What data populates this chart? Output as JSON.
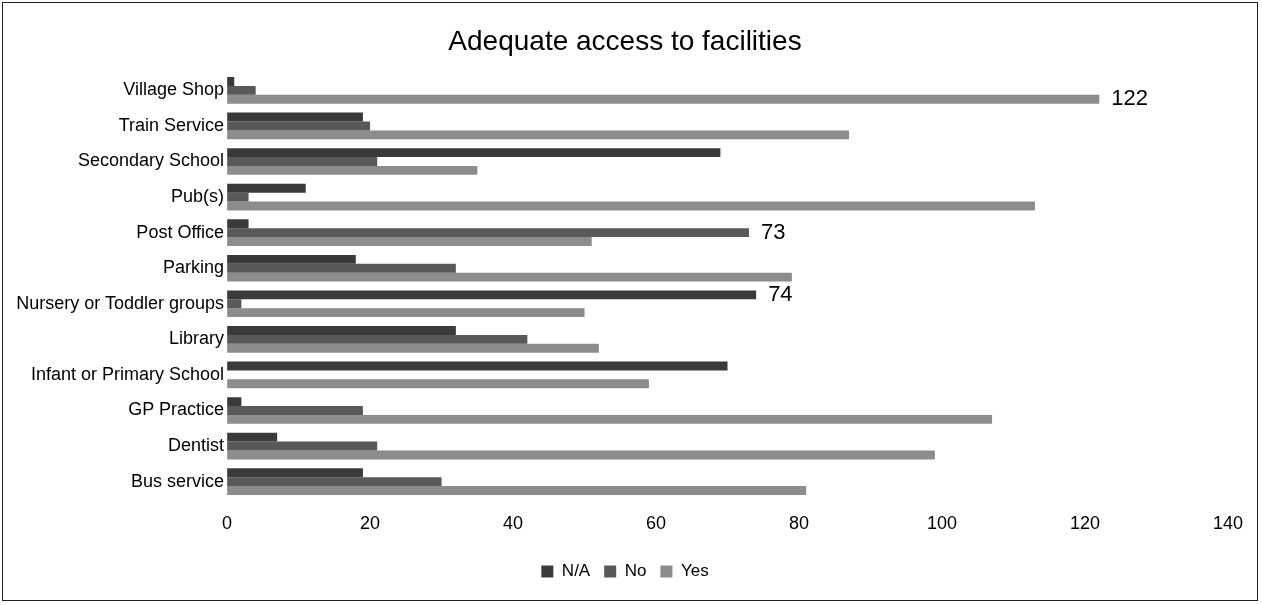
{
  "chart_data": {
    "type": "bar",
    "orientation": "horizontal",
    "title": "Adequate access to facilities",
    "categories": [
      "Village Shop",
      "Train Service",
      "Secondary School",
      "Pub(s)",
      "Post Office",
      "Parking",
      "Nursery or Toddler groups",
      "Library",
      "Infant or Primary School",
      "GP Practice",
      "Dentist",
      "Bus service"
    ],
    "series": [
      {
        "name": "N/A",
        "color": "#3a3a3a",
        "values": [
          1,
          19,
          69,
          11,
          3,
          18,
          74,
          32,
          70,
          2,
          7,
          19
        ],
        "value_labels": [
          null,
          null,
          null,
          null,
          null,
          null,
          "74",
          null,
          null,
          null,
          null,
          null
        ]
      },
      {
        "name": "No",
        "color": "#595959",
        "values": [
          4,
          20,
          21,
          3,
          73,
          32,
          2,
          42,
          0,
          19,
          21,
          30
        ],
        "value_labels": [
          null,
          null,
          null,
          null,
          "73",
          null,
          null,
          null,
          null,
          null,
          null,
          null
        ]
      },
      {
        "name": "Yes",
        "color": "#8c8c8c",
        "values": [
          122,
          87,
          35,
          113,
          51,
          79,
          50,
          52,
          59,
          107,
          99,
          81
        ],
        "value_labels": [
          "122",
          null,
          null,
          null,
          null,
          null,
          null,
          null,
          null,
          null,
          null,
          null
        ]
      }
    ],
    "xlim": [
      0,
      140
    ],
    "xticks": [
      0,
      20,
      40,
      60,
      80,
      100,
      120,
      140
    ],
    "grid": false,
    "legend": "bottom"
  }
}
